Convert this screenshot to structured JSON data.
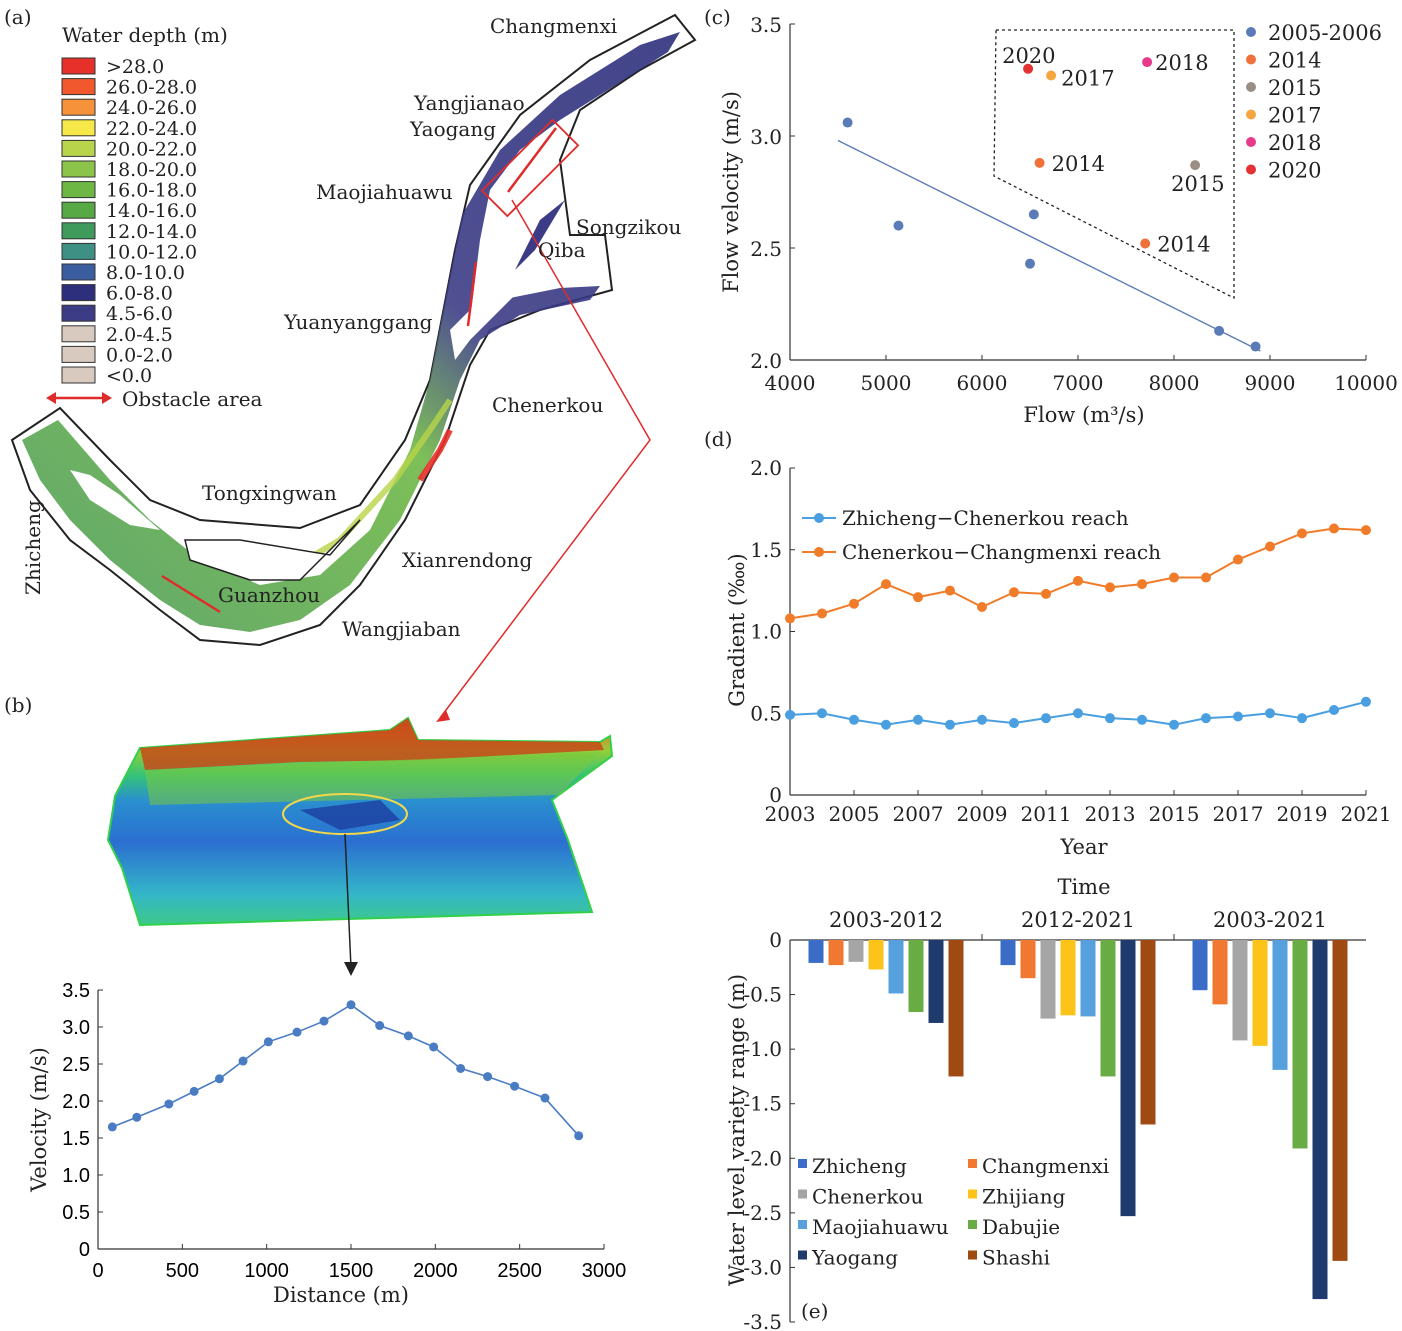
{
  "panels": {
    "a": "(a)",
    "b": "(b)",
    "c": "(c)",
    "d": "(d)",
    "e": "(e)"
  },
  "map": {
    "legend_title": "Water depth (m)",
    "legend": [
      {
        "label": ">28.0",
        "color": "#e8302a"
      },
      {
        "label": "26.0-28.0",
        "color": "#f2582e"
      },
      {
        "label": "24.0-26.0",
        "color": "#f6923a"
      },
      {
        "label": "22.0-24.0",
        "color": "#f7e84a"
      },
      {
        "label": "20.0-22.0",
        "color": "#b8d44a"
      },
      {
        "label": "18.0-20.0",
        "color": "#8cc449"
      },
      {
        "label": "16.0-18.0",
        "color": "#6db845"
      },
      {
        "label": "14.0-16.0",
        "color": "#56a944"
      },
      {
        "label": "12.0-14.0",
        "color": "#3f9a5c"
      },
      {
        "label": "10.0-12.0",
        "color": "#3d9083"
      },
      {
        "label": "8.0-10.0",
        "color": "#3b5da0"
      },
      {
        "label": "6.0-8.0",
        "color": "#2d2f7c"
      },
      {
        "label": "4.5-6.0",
        "color": "#3c3c86"
      },
      {
        "label": "2.0-4.5",
        "color": "#d8cabf"
      },
      {
        "label": "0.0-2.0",
        "color": "#d8cabf"
      },
      {
        "label": "<0.0",
        "color": "#d8cabf"
      }
    ],
    "obstacle_label": "Obstacle area",
    "places": {
      "changmenxi": "Changmenxi",
      "yangjianao": "Yangjianao",
      "yaogang": "Yaogang",
      "maojiahuawu": "Maojiahuawu",
      "songzikou": "Songzikou",
      "qiba": "Qiba",
      "yuanyanggang": "Yuanyanggang",
      "chenerkou": "Chenerkou",
      "tongxingwan": "Tongxingwan",
      "zhicheng": "Zhicheng",
      "xianrendong": "Xianrendong",
      "guanzhou": "Guanzhou",
      "wangjiaban": "Wangjiaban"
    }
  },
  "chart_data": [
    {
      "id": "b",
      "type": "line",
      "xlabel": "Distance (m)",
      "ylabel": "Velocity (m/s)",
      "xlim": [
        0,
        3000
      ],
      "ylim": [
        0,
        3.5
      ],
      "xticks": [
        "0",
        "500",
        "1000",
        "1500",
        "2000",
        "2500",
        "3000"
      ],
      "yticks": [
        "0",
        "0.5",
        "1.0",
        "1.5",
        "2.0",
        "2.5",
        "3.0",
        "3.5"
      ],
      "x": [
        85,
        230,
        420,
        570,
        720,
        860,
        1010,
        1180,
        1340,
        1500,
        1670,
        1840,
        1990,
        2150,
        2310,
        2470,
        2650,
        2850
      ],
      "y": [
        1.65,
        1.78,
        1.96,
        2.13,
        2.3,
        2.54,
        2.8,
        2.93,
        3.08,
        3.3,
        3.02,
        2.88,
        2.73,
        2.44,
        2.33,
        2.2,
        2.04,
        1.53
      ],
      "color": "#4a7cc4"
    },
    {
      "id": "c",
      "type": "scatter",
      "xlabel": "Flow (m³/s)",
      "ylabel": "Flow velocity (m/s)",
      "xlim": [
        4000,
        10000
      ],
      "ylim": [
        2.0,
        3.5
      ],
      "xticks": [
        "4000",
        "5000",
        "6000",
        "7000",
        "8000",
        "9000",
        "10000"
      ],
      "yticks": [
        "2.0",
        "2.5",
        "3.0",
        "3.5"
      ],
      "legend": [
        {
          "name": "2005-2006",
          "color": "#5b7bb8"
        },
        {
          "name": "2014",
          "color": "#f0703a"
        },
        {
          "name": "2015",
          "color": "#9b8f85"
        },
        {
          "name": "2017",
          "color": "#f6a640"
        },
        {
          "name": "2018",
          "color": "#e83a8a"
        },
        {
          "name": "2020",
          "color": "#e23232"
        }
      ],
      "points": [
        {
          "x": 4600,
          "y": 3.06,
          "series": "2005-2006",
          "label": ""
        },
        {
          "x": 5130,
          "y": 2.6,
          "series": "2005-2006",
          "label": ""
        },
        {
          "x": 6540,
          "y": 2.65,
          "series": "2005-2006",
          "label": ""
        },
        {
          "x": 6500,
          "y": 2.43,
          "series": "2005-2006",
          "label": ""
        },
        {
          "x": 8470,
          "y": 2.13,
          "series": "2005-2006",
          "label": ""
        },
        {
          "x": 8850,
          "y": 2.06,
          "series": "2005-2006",
          "label": ""
        },
        {
          "x": 6600,
          "y": 2.88,
          "series": "2014",
          "label": "2014"
        },
        {
          "x": 7700,
          "y": 2.52,
          "series": "2014",
          "label": "2014"
        },
        {
          "x": 8220,
          "y": 2.87,
          "series": "2015",
          "label": "2015"
        },
        {
          "x": 6720,
          "y": 3.27,
          "series": "2017",
          "label": "2017"
        },
        {
          "x": 7720,
          "y": 3.33,
          "series": "2018",
          "label": "2018"
        },
        {
          "x": 6480,
          "y": 3.3,
          "series": "2020",
          "label": "2020"
        }
      ],
      "trendline": {
        "x": [
          4500,
          8900
        ],
        "y": [
          2.98,
          2.04
        ]
      }
    },
    {
      "id": "d",
      "type": "line",
      "xlabel": "Year",
      "ylabel": "Gradient (‱)",
      "xlim": [
        2003,
        2021
      ],
      "ylim": [
        0,
        2.0
      ],
      "xticks": [
        "2003",
        "2005",
        "2007",
        "2009",
        "2011",
        "2013",
        "2015",
        "2017",
        "2019",
        "2021"
      ],
      "yticks": [
        "0",
        "0.5",
        "1.0",
        "1.5",
        "2.0"
      ],
      "x": [
        2003,
        2004,
        2005,
        2006,
        2007,
        2008,
        2009,
        2010,
        2011,
        2012,
        2013,
        2014,
        2015,
        2016,
        2017,
        2018,
        2019,
        2020,
        2021
      ],
      "series": [
        {
          "name": "Zhicheng−Chenerkou reach",
          "color": "#4a9fe0",
          "values": [
            0.49,
            0.5,
            0.46,
            0.43,
            0.46,
            0.43,
            0.46,
            0.44,
            0.47,
            0.5,
            0.47,
            0.46,
            0.43,
            0.47,
            0.48,
            0.5,
            0.47,
            0.52,
            0.57
          ]
        },
        {
          "name": "Chenerkou−Changmenxi reach",
          "color": "#f07c2a",
          "values": [
            1.08,
            1.11,
            1.17,
            1.29,
            1.21,
            1.25,
            1.15,
            1.24,
            1.23,
            1.31,
            1.27,
            1.29,
            1.33,
            1.33,
            1.44,
            1.52,
            1.6,
            1.63,
            1.62
          ]
        }
      ]
    },
    {
      "id": "e",
      "type": "bar",
      "title": "Time",
      "ylabel": "Water level variety range (m)",
      "ylim": [
        -3.5,
        0
      ],
      "yticks": [
        "0",
        "-0.5",
        "-1.0",
        "-1.5",
        "-2.0",
        "-2.5",
        "-3.0",
        "-3.5"
      ],
      "categories": [
        "2003-2012",
        "2012-2021",
        "2003-2021"
      ],
      "series": [
        {
          "name": "Zhicheng",
          "color": "#3a6cc8",
          "values": [
            -0.21,
            -0.23,
            -0.46
          ]
        },
        {
          "name": "Changmenxi",
          "color": "#f07830",
          "values": [
            -0.23,
            -0.35,
            -0.59
          ]
        },
        {
          "name": "Chenerkou",
          "color": "#a5a5a5",
          "values": [
            -0.2,
            -0.72,
            -0.92
          ]
        },
        {
          "name": "Zhijiang",
          "color": "#fcc419",
          "values": [
            -0.27,
            -0.69,
            -0.97
          ]
        },
        {
          "name": "Maojiahuawu",
          "color": "#57a0de",
          "values": [
            -0.49,
            -0.7,
            -1.19
          ]
        },
        {
          "name": "Dabujie",
          "color": "#6aac44",
          "values": [
            -0.66,
            -1.25,
            -1.91
          ]
        },
        {
          "name": "Yaogang",
          "color": "#1f3b6e",
          "values": [
            -0.76,
            -2.53,
            -3.29
          ]
        },
        {
          "name": "Shashi",
          "color": "#9e4a10",
          "values": [
            -1.25,
            -1.69,
            -2.94
          ]
        }
      ]
    }
  ]
}
